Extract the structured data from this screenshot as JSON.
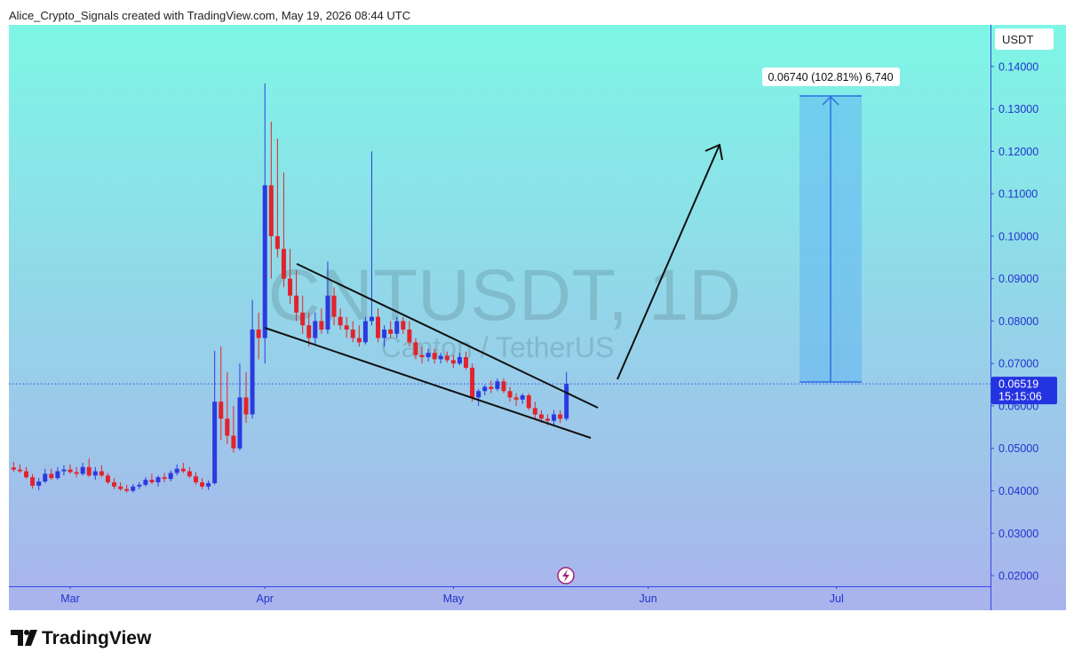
{
  "header": "Alice_Crypto_Signals created with TradingView.com, May 19, 2026 08:44 UTC",
  "brand": "TradingView",
  "chart_data": {
    "type": "candlestick",
    "watermark_title": "CNTUSDT, 1D",
    "watermark_subtitle": "Canton / TetherUS",
    "currency": "USDT",
    "last_price_label": "0.06519",
    "countdown": "15:15:06",
    "annotation": "0.06740 (102.81%) 6,740",
    "up_color": "#2b3ae0",
    "down_color": "#e3232c",
    "grid": false,
    "xlim": [
      -9.76,
      146.5
    ],
    "xticks": [
      {
        "value": 0,
        "label": "Mar"
      },
      {
        "value": 31,
        "label": "Apr"
      },
      {
        "value": 61,
        "label": "May"
      },
      {
        "value": 92,
        "label": "Jun"
      },
      {
        "value": 122,
        "label": "Jul"
      }
    ],
    "ylim": [
      0.0175,
      0.1498
    ],
    "yticks": [
      {
        "value": 0.02,
        "label": "0.02000"
      },
      {
        "value": 0.03,
        "label": "0.03000"
      },
      {
        "value": 0.04,
        "label": "0.04000"
      },
      {
        "value": 0.05,
        "label": "0.05000"
      },
      {
        "value": 0.06,
        "label": "0.06000"
      },
      {
        "value": 0.07,
        "label": "0.07000"
      },
      {
        "value": 0.08,
        "label": "0.08000"
      },
      {
        "value": 0.09,
        "label": "0.09000"
      },
      {
        "value": 0.1,
        "label": "0.10000"
      },
      {
        "value": 0.11,
        "label": "0.11000"
      },
      {
        "value": 0.12,
        "label": "0.12000"
      },
      {
        "value": 0.13,
        "label": "0.13000"
      },
      {
        "value": 0.14,
        "label": "0.14000"
      }
    ],
    "x": [
      -9,
      -8,
      -7,
      -6,
      -5,
      -4,
      -3,
      -2,
      -1,
      0,
      1,
      2,
      3,
      4,
      5,
      6,
      7,
      8,
      9,
      10,
      11,
      12,
      13,
      14,
      15,
      16,
      17,
      18,
      19,
      20,
      21,
      22,
      23,
      24,
      25,
      26,
      27,
      28,
      29,
      30,
      31,
      32,
      33,
      34,
      35,
      36,
      37,
      38,
      39,
      40,
      41,
      42,
      43,
      44,
      45,
      46,
      47,
      48,
      49,
      50,
      51,
      52,
      53,
      54,
      55,
      56,
      57,
      58,
      59,
      60,
      61,
      62,
      63,
      64,
      65,
      66,
      67,
      68,
      69,
      70,
      71,
      72,
      73,
      74,
      75,
      76,
      77,
      78,
      79
    ],
    "open": [
      0.0455,
      0.045,
      0.0446,
      0.0432,
      0.0412,
      0.0422,
      0.044,
      0.043,
      0.0446,
      0.045,
      0.0444,
      0.044,
      0.0456,
      0.0436,
      0.0446,
      0.0436,
      0.042,
      0.041,
      0.0404,
      0.04,
      0.041,
      0.0414,
      0.0426,
      0.042,
      0.0432,
      0.0428,
      0.0442,
      0.0452,
      0.0446,
      0.0434,
      0.042,
      0.041,
      0.0418,
      0.061,
      0.057,
      0.053,
      0.05,
      0.062,
      0.058,
      0.078,
      0.076,
      0.112,
      0.1,
      0.097,
      0.09,
      0.086,
      0.082,
      0.079,
      0.076,
      0.08,
      0.078,
      0.086,
      0.081,
      0.079,
      0.078,
      0.076,
      0.075,
      0.08,
      0.081,
      0.076,
      0.078,
      0.077,
      0.08,
      0.078,
      0.075,
      0.072,
      0.0715,
      0.0725,
      0.071,
      0.0718,
      0.0708,
      0.07,
      0.0715,
      0.069,
      0.062,
      0.0635,
      0.0645,
      0.064,
      0.0658,
      0.0635,
      0.062,
      0.0615,
      0.0625,
      0.0595,
      0.058,
      0.057,
      0.0565,
      0.058,
      0.057
    ],
    "high": [
      0.0468,
      0.0462,
      0.0456,
      0.044,
      0.043,
      0.0452,
      0.0452,
      0.0456,
      0.046,
      0.0462,
      0.0456,
      0.0466,
      0.0476,
      0.0456,
      0.046,
      0.0442,
      0.043,
      0.042,
      0.0414,
      0.0416,
      0.042,
      0.0432,
      0.044,
      0.0436,
      0.0442,
      0.0448,
      0.0462,
      0.0466,
      0.0456,
      0.0444,
      0.043,
      0.0424,
      0.073,
      0.074,
      0.068,
      0.06,
      0.07,
      0.068,
      0.085,
      0.082,
      0.136,
      0.127,
      0.123,
      0.115,
      0.097,
      0.092,
      0.086,
      0.082,
      0.082,
      0.083,
      0.094,
      0.088,
      0.083,
      0.081,
      0.08,
      0.079,
      0.081,
      0.12,
      0.083,
      0.079,
      0.08,
      0.081,
      0.081,
      0.08,
      0.076,
      0.074,
      0.0735,
      0.0735,
      0.0725,
      0.0728,
      0.072,
      0.0725,
      0.0728,
      0.07,
      0.064,
      0.065,
      0.066,
      0.0665,
      0.0665,
      0.0645,
      0.063,
      0.063,
      0.063,
      0.061,
      0.059,
      0.058,
      0.059,
      0.059,
      0.068
    ],
    "low": [
      0.0445,
      0.0442,
      0.0428,
      0.0405,
      0.0402,
      0.0418,
      0.0426,
      0.0426,
      0.0436,
      0.044,
      0.0432,
      0.0436,
      0.0432,
      0.0426,
      0.0432,
      0.0416,
      0.0404,
      0.04,
      0.0396,
      0.0396,
      0.0404,
      0.041,
      0.0416,
      0.041,
      0.042,
      0.0422,
      0.0436,
      0.0442,
      0.043,
      0.0414,
      0.0404,
      0.0402,
      0.0414,
      0.052,
      0.051,
      0.049,
      0.0495,
      0.056,
      0.057,
      0.071,
      0.07,
      0.09,
      0.095,
      0.088,
      0.084,
      0.08,
      0.077,
      0.074,
      0.0745,
      0.077,
      0.077,
      0.079,
      0.078,
      0.076,
      0.075,
      0.074,
      0.0745,
      0.079,
      0.075,
      0.074,
      0.076,
      0.076,
      0.077,
      0.074,
      0.071,
      0.07,
      0.0705,
      0.07,
      0.07,
      0.0702,
      0.069,
      0.0696,
      0.0685,
      0.061,
      0.06,
      0.0625,
      0.063,
      0.0635,
      0.063,
      0.061,
      0.06,
      0.0605,
      0.059,
      0.057,
      0.056,
      0.0555,
      0.0555,
      0.056,
      0.0565
    ],
    "close": [
      0.045,
      0.0446,
      0.0432,
      0.0412,
      0.0422,
      0.044,
      0.043,
      0.0446,
      0.045,
      0.0444,
      0.044,
      0.0456,
      0.0436,
      0.0446,
      0.0436,
      0.042,
      0.041,
      0.0404,
      0.04,
      0.041,
      0.0414,
      0.0426,
      0.042,
      0.0432,
      0.0428,
      0.0442,
      0.0452,
      0.0446,
      0.0434,
      0.042,
      0.041,
      0.0418,
      0.061,
      0.057,
      0.053,
      0.05,
      0.062,
      0.058,
      0.078,
      0.076,
      0.112,
      0.1,
      0.097,
      0.09,
      0.086,
      0.082,
      0.079,
      0.076,
      0.08,
      0.078,
      0.086,
      0.081,
      0.079,
      0.078,
      0.076,
      0.075,
      0.08,
      0.081,
      0.076,
      0.078,
      0.077,
      0.08,
      0.078,
      0.075,
      0.072,
      0.0715,
      0.0725,
      0.071,
      0.0718,
      0.0708,
      0.07,
      0.0715,
      0.069,
      0.062,
      0.0635,
      0.0645,
      0.064,
      0.0658,
      0.0635,
      0.062,
      0.0615,
      0.0625,
      0.0595,
      0.058,
      0.057,
      0.0565,
      0.058,
      0.057,
      0.06519
    ]
  }
}
